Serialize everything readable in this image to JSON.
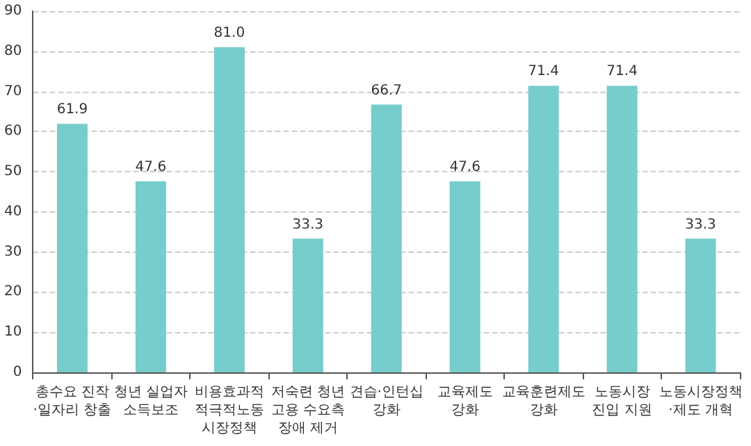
{
  "chart_data": {
    "type": "bar",
    "categories": [
      "총수요 진작\n·일자리 창출",
      "청년 실업자\n소득보조",
      "비용효과적\n적극적노동\n시장정책",
      "저숙련 청년\n고용 수요측\n장애 제거",
      "견습·인턴십\n강화",
      "교육제도\n강화",
      "교육훈련제도\n강화",
      "노동시장\n진입 지원",
      "노동시장정책\n·제도 개혁"
    ],
    "values": [
      61.9,
      47.6,
      81.0,
      33.3,
      66.7,
      47.6,
      71.4,
      71.4,
      33.3
    ],
    "value_labels": [
      "61.9",
      "47.6",
      "81.0",
      "33.3",
      "66.7",
      "47.6",
      "71.4",
      "71.4",
      "33.3"
    ],
    "color": "#77cccc",
    "ylim": [
      0,
      90
    ],
    "yticks": [
      0,
      10,
      20,
      30,
      40,
      50,
      60,
      70,
      80,
      90
    ],
    "grid": "y"
  }
}
